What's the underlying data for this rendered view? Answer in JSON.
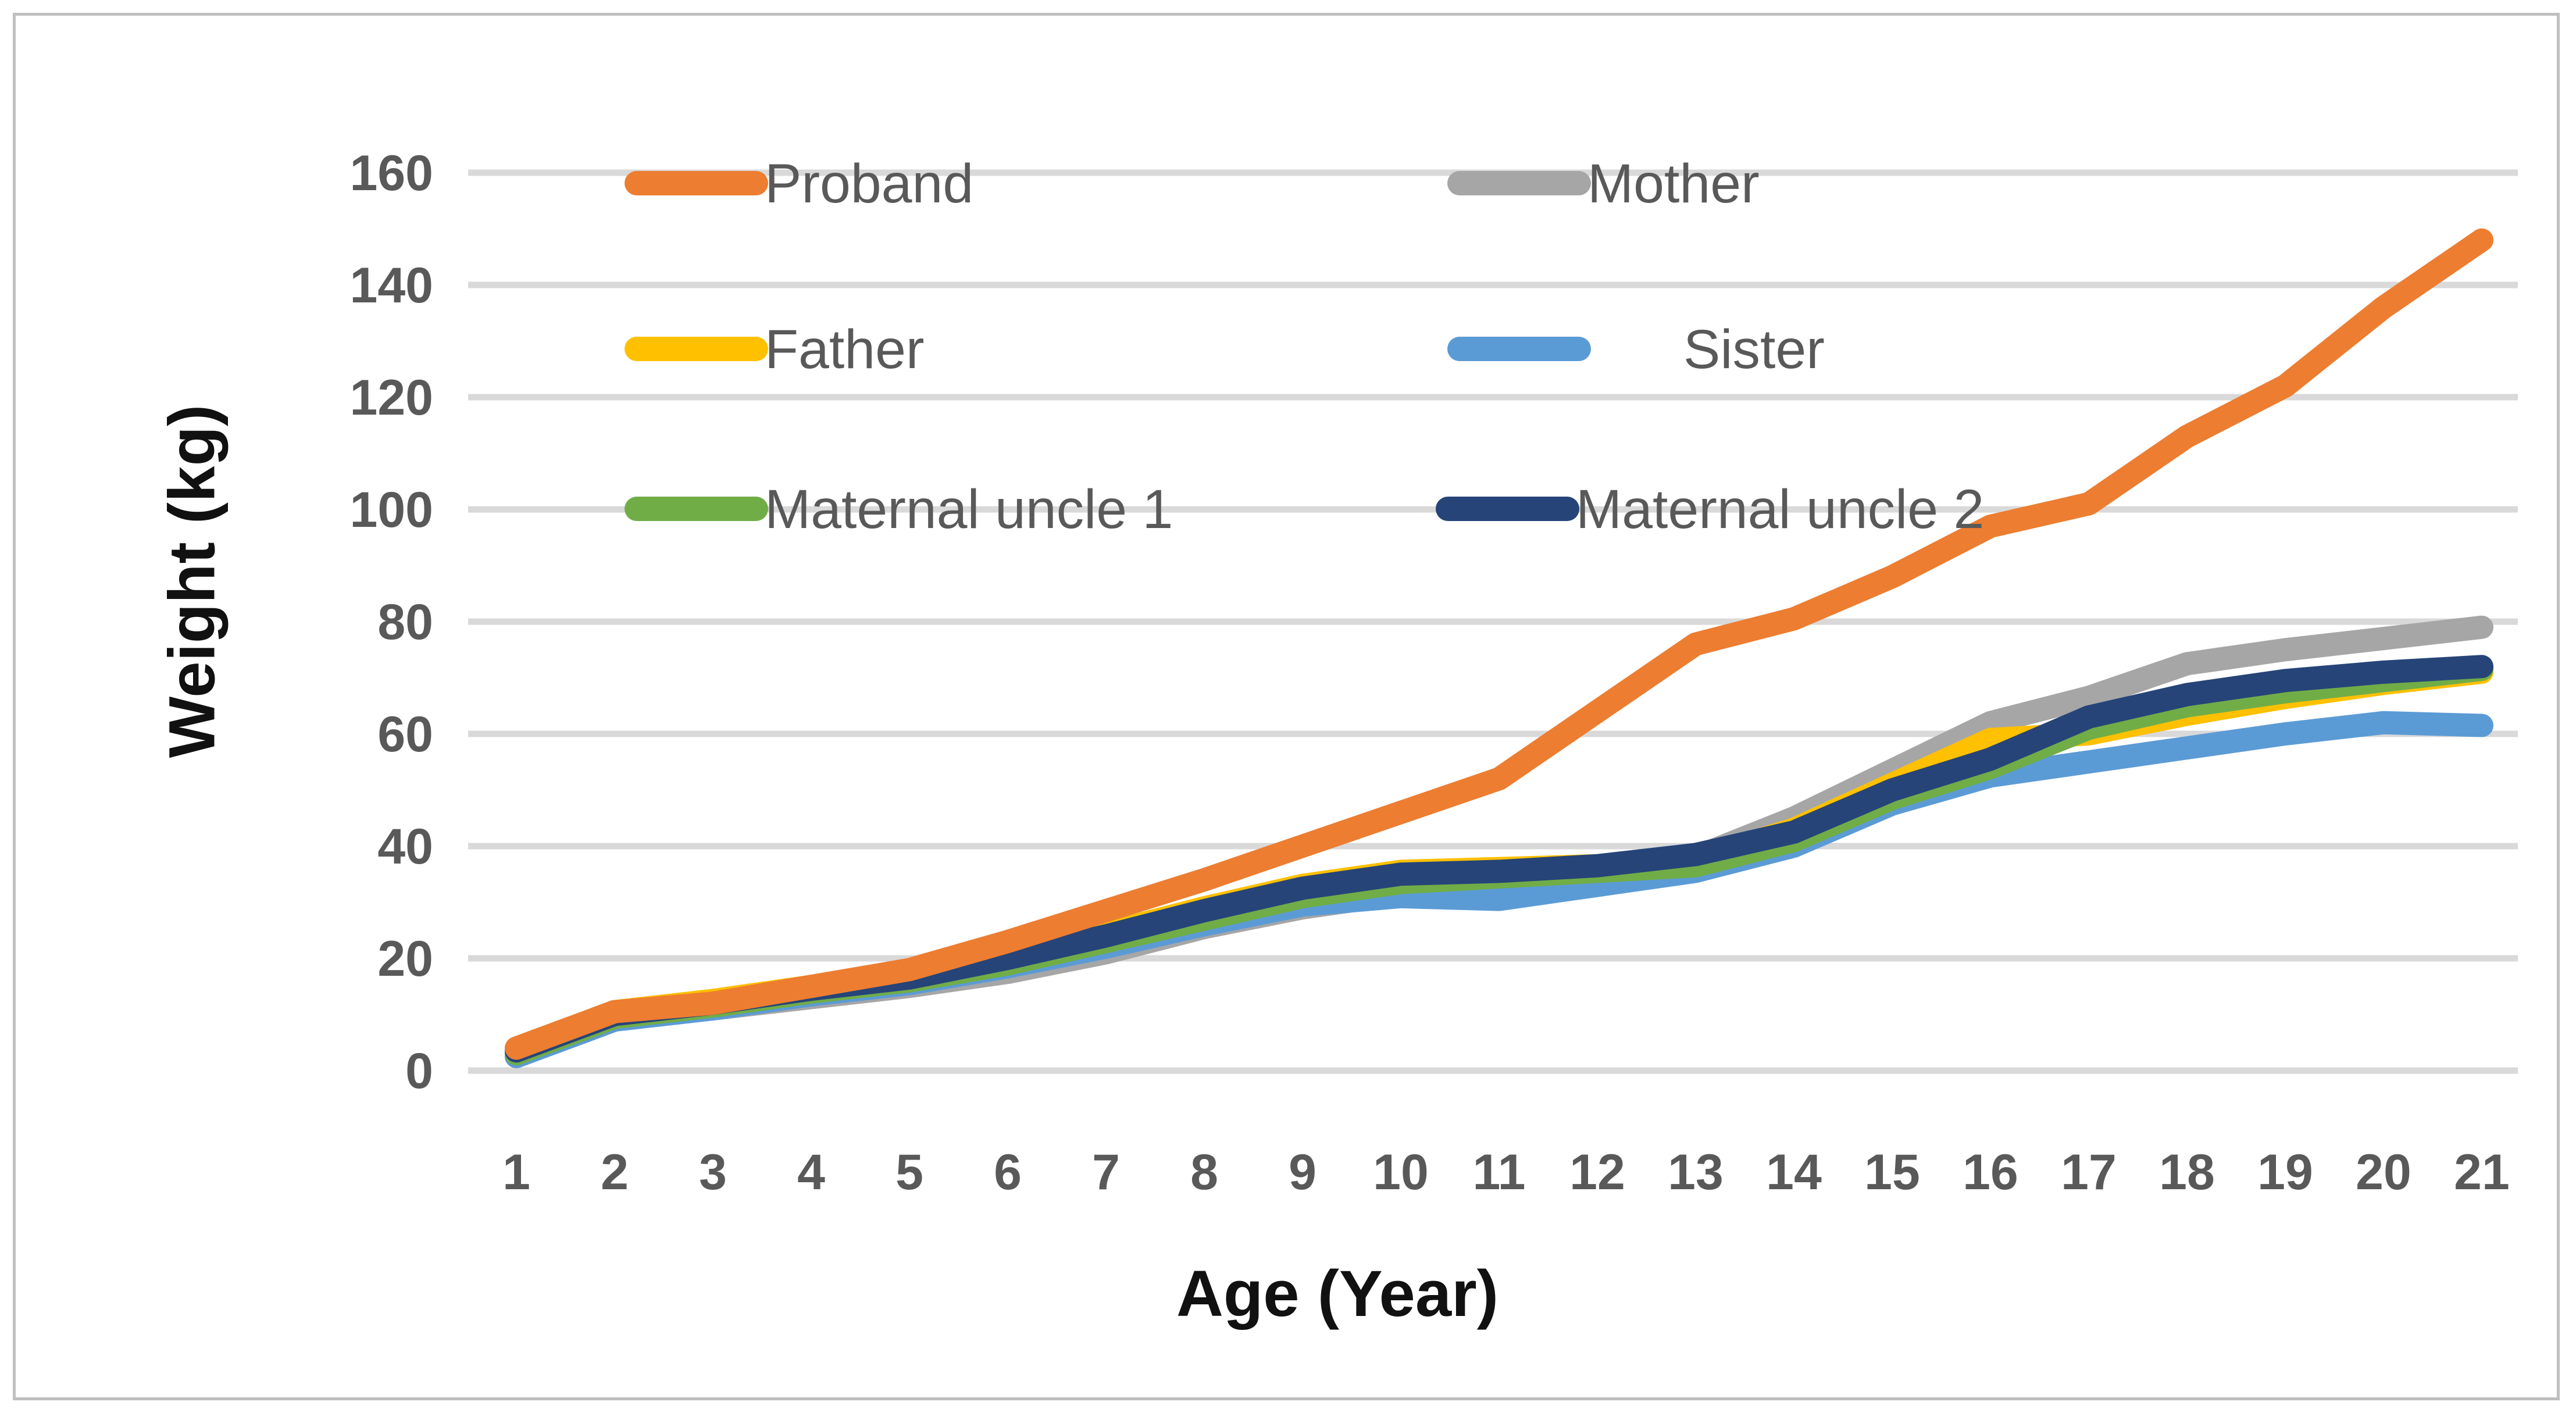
{
  "chart_data": {
    "type": "line",
    "title": "",
    "xlabel": "Age (Year)",
    "ylabel": "Weight (kg)",
    "x": [
      1,
      2,
      3,
      4,
      5,
      6,
      7,
      8,
      9,
      10,
      11,
      12,
      13,
      14,
      15,
      16,
      17,
      18,
      19,
      20,
      21
    ],
    "yticks": [
      0,
      20,
      40,
      60,
      80,
      100,
      120,
      140,
      160
    ],
    "ylim": [
      0,
      160
    ],
    "xlim": [
      1,
      21
    ],
    "grid": "horizontal",
    "gridline_color": "#d9d9d9",
    "tick_label_color": "#595959",
    "legend_text_color": "#595959",
    "legend_position": "inside-top-left",
    "series": [
      {
        "name": "Proband",
        "color": "#ED7D31",
        "values": [
          4,
          10.5,
          12,
          15,
          18,
          23,
          28.5,
          34,
          40,
          46,
          52,
          64,
          76,
          80.5,
          88,
          97,
          101,
          113,
          122,
          136,
          148
        ]
      },
      {
        "name": "Mother",
        "color": "#A6A6A6",
        "values": [
          3,
          9.5,
          11,
          13,
          15,
          17.5,
          21,
          25.5,
          29,
          31.5,
          33.5,
          35,
          38,
          45,
          53.5,
          62,
          66.5,
          72.5,
          75,
          77,
          79
        ]
      },
      {
        "name": "Father",
        "color": "#FFC000",
        "values": [
          4,
          10.5,
          12.5,
          15,
          17.5,
          20.5,
          24.5,
          29,
          33,
          35.5,
          36,
          36.5,
          37.5,
          43,
          51,
          59,
          60,
          63.5,
          66.5,
          69,
          71
        ]
      },
      {
        "name": "Sister",
        "color": "#5B9BD5",
        "values": [
          2.5,
          9,
          11,
          13.5,
          15.5,
          18.5,
          22,
          26,
          29.5,
          31,
          30.5,
          33,
          35.5,
          40,
          47.5,
          52.5,
          55,
          57.5,
          60,
          62,
          61.5
        ]
      },
      {
        "name": "Maternal uncle 1",
        "color": "#70AD47",
        "values": [
          3,
          9.5,
          11.5,
          14,
          16,
          19,
          23,
          27,
          31,
          33.5,
          34.5,
          35.5,
          36.5,
          41,
          48.5,
          54,
          61,
          65,
          67.5,
          69.5,
          71.5
        ]
      },
      {
        "name": "Maternal uncle 2",
        "color": "#264478",
        "values": [
          3.5,
          10,
          12,
          14.5,
          16.5,
          20,
          24,
          28.5,
          32.5,
          35,
          35.5,
          36.5,
          38.5,
          42.5,
          50,
          55.5,
          63,
          67,
          69.5,
          71,
          72
        ]
      }
    ]
  }
}
